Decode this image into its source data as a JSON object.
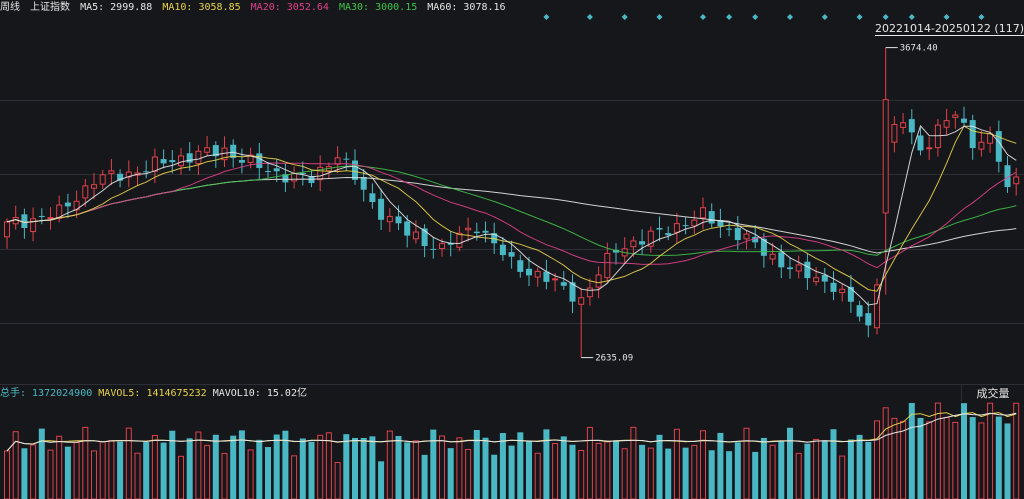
{
  "header": {
    "period": "周线",
    "index_name": "上证指数",
    "ma5": "MA5: 2999.88",
    "ma10": "MA10: 3058.85",
    "ma20": "MA20: 3052.64",
    "ma30": "MA30: 3000.15",
    "ma60": "MA60: 3078.16",
    "range": "20221014-20250122 (117)"
  },
  "volume_bar": {
    "label": "总手: 1372024900",
    "mavol5": "MAVOL5: 1414675232",
    "mavol10": "MAVOL10: 15.02亿",
    "button": "成交量"
  },
  "colors": {
    "up": "#e0404a",
    "down": "#4ab8c4",
    "ma5": "#e6e6e6",
    "ma10": "#e8d24a",
    "ma20": "#e0408a",
    "ma30": "#3fc24a",
    "ma60": "#e6e6e6",
    "grid": "#2d2f36"
  },
  "chart_data": {
    "type": "candlestick",
    "annotations": {
      "high_label": "3674.40",
      "low_label": "2635.09"
    },
    "high": 3674.4,
    "low": 2635.09,
    "first_close": 3080,
    "last_close": 3240,
    "weeks": 117,
    "moving_averages": [
      "MA5",
      "MA10",
      "MA20",
      "MA30",
      "MA60"
    ],
    "volume_ma": [
      "MAVOL5",
      "MAVOL10"
    ]
  }
}
